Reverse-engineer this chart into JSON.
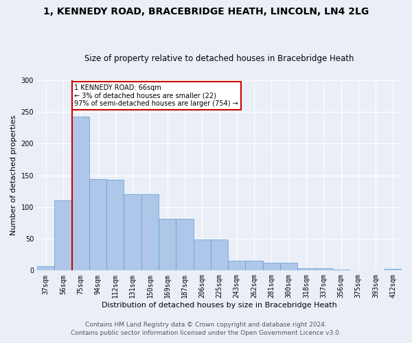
{
  "title1": "1, KENNEDY ROAD, BRACEBRIDGE HEATH, LINCOLN, LN4 2LG",
  "title2": "Size of property relative to detached houses in Bracebridge Heath",
  "xlabel": "Distribution of detached houses by size in Bracebridge Heath",
  "ylabel": "Number of detached properties",
  "footnote1": "Contains HM Land Registry data © Crown copyright and database right 2024.",
  "footnote2": "Contains public sector information licensed under the Open Government Licence v3.0.",
  "categories": [
    "37sqm",
    "56sqm",
    "75sqm",
    "94sqm",
    "112sqm",
    "131sqm",
    "150sqm",
    "169sqm",
    "187sqm",
    "206sqm",
    "225sqm",
    "243sqm",
    "262sqm",
    "281sqm",
    "300sqm",
    "318sqm",
    "337sqm",
    "356sqm",
    "375sqm",
    "393sqm",
    "412sqm"
  ],
  "values": [
    7,
    111,
    243,
    144,
    143,
    120,
    120,
    81,
    81,
    49,
    49,
    15,
    15,
    12,
    12,
    4,
    4,
    1,
    0,
    0,
    3
  ],
  "bar_color": "#aec6e8",
  "bar_edge_color": "#5a9fd4",
  "vline_x": 1.5,
  "annotation_text": "1 KENNEDY ROAD: 66sqm\n← 3% of detached houses are smaller (22)\n97% of semi-detached houses are larger (754) →",
  "annotation_box_color": "#ffffff",
  "annotation_box_edge": "#cc0000",
  "vline_color": "#cc0000",
  "ylim": [
    0,
    300
  ],
  "yticks": [
    0,
    50,
    100,
    150,
    200,
    250,
    300
  ],
  "background_color": "#eaeff7",
  "title1_fontsize": 10,
  "title2_fontsize": 8.5,
  "xlabel_fontsize": 8,
  "ylabel_fontsize": 8,
  "tick_fontsize": 7,
  "footnote_fontsize": 6.5
}
